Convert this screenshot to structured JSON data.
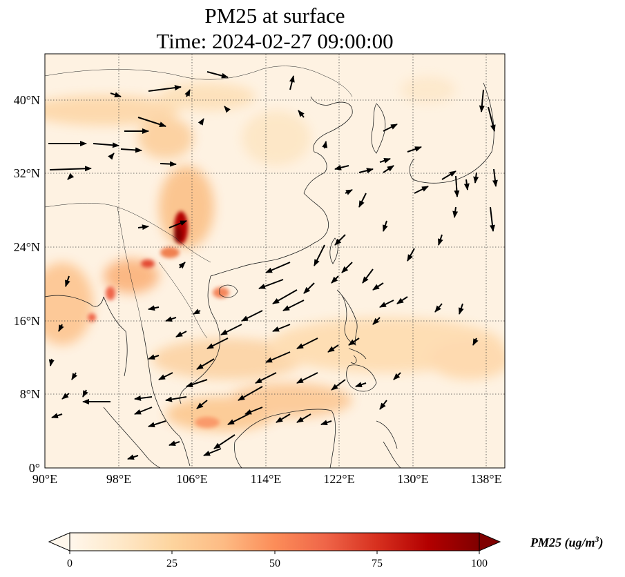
{
  "title": {
    "line1": "PM25 at surface",
    "line2": "Time: 2024-02-27 09:00:00"
  },
  "map": {
    "extent_lon": [
      90,
      140
    ],
    "extent_lat": [
      0,
      45
    ],
    "lon_ticks": [
      {
        "value": 90,
        "label": "90°E"
      },
      {
        "value": 98,
        "label": "98°E"
      },
      {
        "value": 106,
        "label": "106°E"
      },
      {
        "value": 114,
        "label": "114°E"
      },
      {
        "value": 122,
        "label": "122°E"
      },
      {
        "value": 130,
        "label": "130°E"
      },
      {
        "value": 138,
        "label": "138°E"
      }
    ],
    "lat_ticks": [
      {
        "value": 0,
        "label": "0°"
      },
      {
        "value": 8,
        "label": "8°N"
      },
      {
        "value": 16,
        "label": "16°N"
      },
      {
        "value": 24,
        "label": "24°N"
      },
      {
        "value": 32,
        "label": "32°N"
      },
      {
        "value": 40,
        "label": "40°N"
      }
    ],
    "gridlines": true,
    "vectors": "surface wind arrows"
  },
  "colorbar": {
    "label": "PM25 (ug/m",
    "label_sup": "3",
    "label_close": ")",
    "min": 0,
    "max": 100,
    "ticks": [
      {
        "value": 0,
        "label": "0"
      },
      {
        "value": 25,
        "label": "25"
      },
      {
        "value": 50,
        "label": "50"
      },
      {
        "value": 75,
        "label": "75"
      },
      {
        "value": 100,
        "label": "100"
      }
    ],
    "extend": "both",
    "colormap": "OrRd",
    "colors": [
      "#fff7ec",
      "#fee8c8",
      "#fdd49e",
      "#fdbb84",
      "#fc8d59",
      "#ef6548",
      "#d7301f",
      "#b30000",
      "#7f0000"
    ]
  }
}
